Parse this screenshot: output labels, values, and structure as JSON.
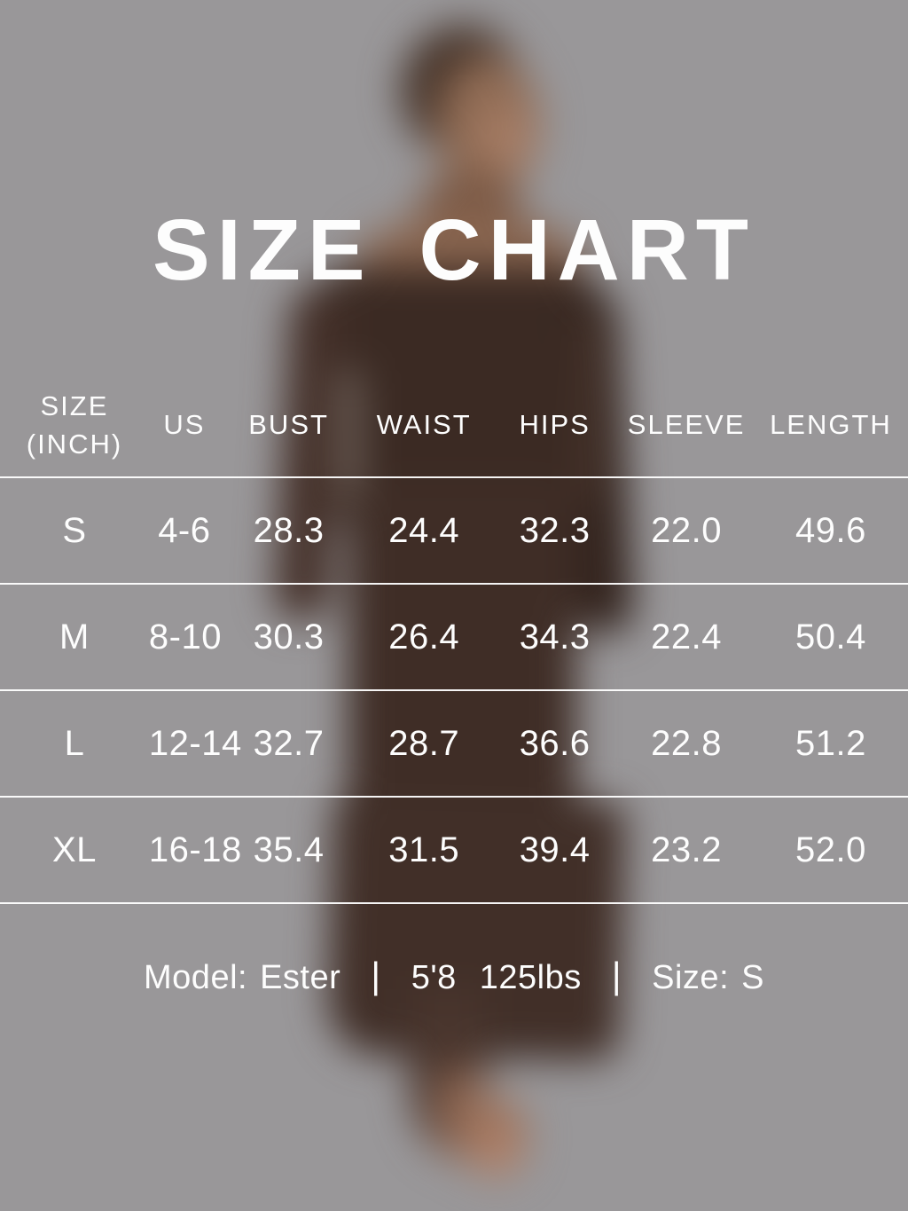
{
  "page": {
    "title": "SIZE CHART"
  },
  "table": {
    "header": {
      "col1_line1": "SIZE",
      "col1_line2": "(INCH)",
      "col2": "US",
      "col3": "BUST",
      "col4": "WAIST",
      "col5": "HIPS",
      "col6": "SLEEVE",
      "col7": "LENGTH"
    },
    "rows": [
      [
        "S",
        "4-6",
        "28.3",
        "24.4",
        "32.3",
        "22.0",
        "49.6"
      ],
      [
        "M",
        "8-10",
        "30.3",
        "26.4",
        "34.3",
        "22.4",
        "50.4"
      ],
      [
        "L",
        "12-14",
        "32.7",
        "28.7",
        "36.6",
        "22.8",
        "51.2"
      ],
      [
        "XL",
        "16-18",
        "35.4",
        "31.5",
        "39.4",
        "23.2",
        "52.0"
      ]
    ]
  },
  "caption": {
    "model_label": "Model:",
    "model_value": "Ester",
    "divider": "|",
    "stats_height": "5'8",
    "stats_weight": "125lbs",
    "size_label": "Size:",
    "size_value": "S"
  },
  "chart_data": {
    "type": "table",
    "title": "SIZE CHART",
    "units": "inches",
    "columns": [
      "SIZE (INCH)",
      "US",
      "BUST",
      "WAIST",
      "HIPS",
      "SLEEVE",
      "LENGTH"
    ],
    "rows": [
      [
        "S",
        "4-6",
        28.3,
        24.4,
        32.3,
        22.0,
        49.6
      ],
      [
        "M",
        "8-10",
        30.3,
        26.4,
        34.3,
        22.4,
        50.4
      ],
      [
        "L",
        "12-14",
        32.7,
        28.7,
        36.6,
        22.8,
        51.2
      ],
      [
        "XL",
        "16-18",
        35.4,
        31.5,
        39.4,
        23.2,
        52.0
      ]
    ],
    "footnote": "Model: Ester | 5'8 125lbs | Size: S"
  },
  "colors": {
    "background": "#999799",
    "text": "#ffffff",
    "divider_line": "#ffffff",
    "dress": "#3f2d26",
    "skin": "#8f6b54",
    "hair": "#453329"
  }
}
